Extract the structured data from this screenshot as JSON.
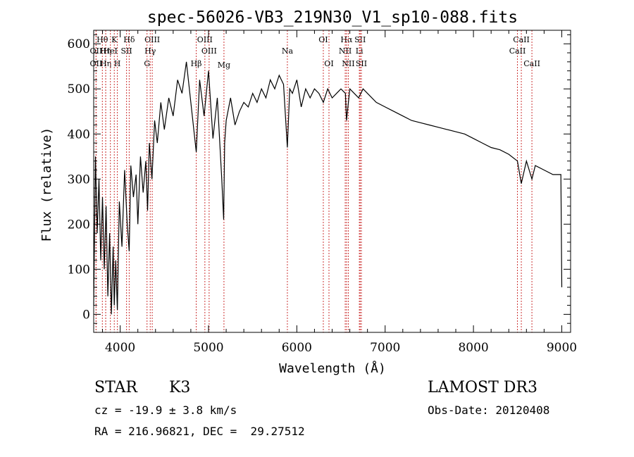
{
  "chart_data": {
    "type": "line",
    "title": "spec-56026-VB3_219N30_V1_sp10-088.fits",
    "xlabel": "Wavelength (Å)",
    "ylabel": "Flux (relative)",
    "xlim": [
      3700,
      9100
    ],
    "ylim": [
      -40,
      630
    ],
    "x_ticks": [
      4000,
      5000,
      6000,
      7000,
      8000,
      9000
    ],
    "y_ticks": [
      0,
      100,
      200,
      300,
      400,
      500,
      600
    ],
    "grid": false,
    "series": [
      {
        "x": [
          3700,
          3720,
          3740,
          3760,
          3780,
          3800,
          3820,
          3840,
          3860,
          3880,
          3900,
          3920,
          3933,
          3950,
          3968,
          3990,
          4020,
          4050,
          4080,
          4102,
          4120,
          4150,
          4180,
          4200,
          4230,
          4260,
          4290,
          4310,
          4330,
          4360,
          4390,
          4420,
          4460,
          4500,
          4550,
          4600,
          4650,
          4700,
          4750,
          4800,
          4861,
          4900,
          4950,
          5000,
          5050,
          5100,
          5150,
          5172,
          5183,
          5200,
          5250,
          5300,
          5350,
          5400,
          5450,
          5500,
          5550,
          5600,
          5650,
          5700,
          5750,
          5800,
          5850,
          5893,
          5920,
          5950,
          6000,
          6050,
          6100,
          6150,
          6200,
          6250,
          6300,
          6350,
          6400,
          6450,
          6500,
          6550,
          6563,
          6600,
          6650,
          6700,
          6750,
          6800,
          6900,
          7000,
          7100,
          7200,
          7300,
          7400,
          7500,
          7600,
          7700,
          7800,
          7900,
          8000,
          8100,
          8200,
          8300,
          8400,
          8498,
          8542,
          8600,
          8662,
          8700,
          8800,
          8900,
          8990,
          9000
        ],
        "y": [
          20,
          350,
          180,
          300,
          120,
          260,
          100,
          240,
          40,
          180,
          0,
          150,
          20,
          120,
          10,
          250,
          150,
          320,
          200,
          140,
          330,
          260,
          310,
          200,
          350,
          270,
          340,
          230,
          380,
          300,
          430,
          380,
          470,
          410,
          480,
          440,
          520,
          490,
          560,
          470,
          360,
          520,
          440,
          540,
          390,
          480,
          300,
          210,
          380,
          430,
          480,
          420,
          450,
          470,
          460,
          490,
          470,
          500,
          480,
          520,
          500,
          530,
          510,
          370,
          500,
          490,
          520,
          460,
          500,
          480,
          500,
          490,
          470,
          500,
          480,
          490,
          500,
          490,
          430,
          500,
          490,
          480,
          500,
          490,
          470,
          460,
          450,
          440,
          430,
          425,
          420,
          415,
          410,
          405,
          400,
          390,
          380,
          370,
          365,
          355,
          340,
          290,
          340,
          300,
          330,
          320,
          310,
          310,
          60
        ]
      }
    ],
    "line_markers": [
      {
        "name": "Hθ",
        "x": 3798,
        "row": 0
      },
      {
        "name": "OII",
        "x": 3727,
        "row": 1
      },
      {
        "name": "OII",
        "x": 3727,
        "row": 2
      },
      {
        "name": "Hη",
        "x": 3836,
        "row": 1
      },
      {
        "name": "Hη",
        "x": 3836,
        "row": 2
      },
      {
        "name": "K",
        "x": 3933,
        "row": 0
      },
      {
        "name": "HeI",
        "x": 3889,
        "row": 1
      },
      {
        "name": "H",
        "x": 3968,
        "row": 2
      },
      {
        "name": "Hδ",
        "x": 4102,
        "row": 0
      },
      {
        "name": "SII",
        "x": 4072,
        "row": 1
      },
      {
        "name": "OIII",
        "x": 4363,
        "row": 0
      },
      {
        "name": "Hγ",
        "x": 4340,
        "row": 1
      },
      {
        "name": "G",
        "x": 4304,
        "row": 2
      },
      {
        "name": "OIII",
        "x": 4959,
        "row": 0
      },
      {
        "name": "OIII",
        "x": 5007,
        "row": 1
      },
      {
        "name": "Hβ",
        "x": 4861,
        "row": 2
      },
      {
        "name": "Mg",
        "x": 5175,
        "row": 3
      },
      {
        "name": "Na",
        "x": 5893,
        "row": 1
      },
      {
        "name": "OI",
        "x": 6300,
        "row": 0
      },
      {
        "name": "OI",
        "x": 6364,
        "row": 2
      },
      {
        "name": "Hα",
        "x": 6563,
        "row": 0
      },
      {
        "name": "SII",
        "x": 6717,
        "row": 0
      },
      {
        "name": "NII",
        "x": 6548,
        "row": 1
      },
      {
        "name": "Li",
        "x": 6708,
        "row": 1
      },
      {
        "name": "NII",
        "x": 6583,
        "row": 2
      },
      {
        "name": "SII",
        "x": 6731,
        "row": 2
      },
      {
        "name": "CaII",
        "x": 8542,
        "row": 0
      },
      {
        "name": "CaII",
        "x": 8498,
        "row": 1
      },
      {
        "name": "CaII",
        "x": 8662,
        "row": 2
      }
    ]
  },
  "info": {
    "class_label": "STAR",
    "subclass": "K3",
    "redshift": "cz = -19.9 ± 3.8 km/s",
    "coords": "RA = 216.96821, DEC =  29.27512",
    "survey": "LAMOST DR3",
    "obs_date": "Obs-Date: 20120408"
  }
}
